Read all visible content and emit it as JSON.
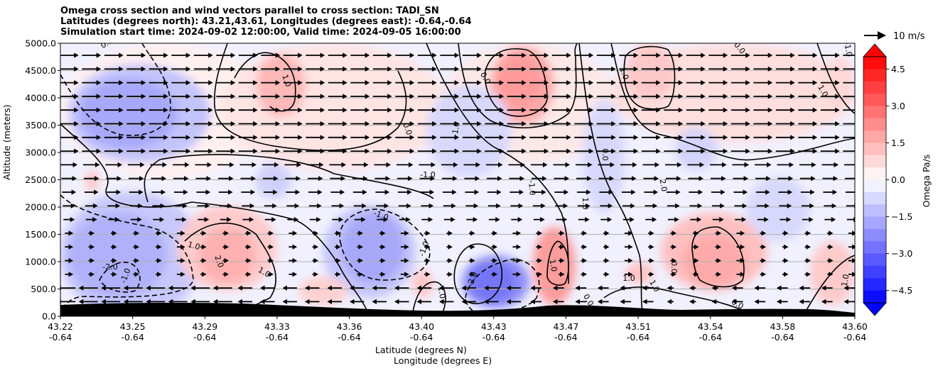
{
  "title_lines": [
    "Omega cross section and wind vectors parallel to cross section: TADI_SN",
    "Latitudes (degrees north): 43.21,43.61, Longitudes (degrees east): -0.64,-0.64",
    "Simulation start time: 2024-09-02 12:00:00, Valid time: 2024-09-05 16:00:00"
  ],
  "chart_data": {
    "type": "heatmap",
    "ylabel": "Altitude (meters)",
    "xlabel_lat": "Latitude (degrees N)",
    "xlabel_lon": "Longitude (degrees E)",
    "ylim": [
      0,
      5000
    ],
    "xlim": [
      43.22,
      43.6
    ],
    "y_ticks": [
      "0.0",
      "500.0",
      "1000.0",
      "1500.0",
      "2000.0",
      "2500.0",
      "3000.0",
      "3500.0",
      "4000.0",
      "4500.0",
      "5000.0"
    ],
    "x_ticks": [
      {
        "lat": "43.22",
        "lon": "-0.64"
      },
      {
        "lat": "43.25",
        "lon": "-0.64"
      },
      {
        "lat": "43.29",
        "lon": "-0.64"
      },
      {
        "lat": "43.33",
        "lon": "-0.64"
      },
      {
        "lat": "43.36",
        "lon": "-0.64"
      },
      {
        "lat": "43.40",
        "lon": "-0.64"
      },
      {
        "lat": "43.43",
        "lon": "-0.64"
      },
      {
        "lat": "43.47",
        "lon": "-0.64"
      },
      {
        "lat": "43.51",
        "lon": "-0.64"
      },
      {
        "lat": "43.54",
        "lon": "-0.64"
      },
      {
        "lat": "43.58",
        "lon": "-0.64"
      },
      {
        "lat": "43.60",
        "lon": "-0.64"
      }
    ],
    "grid": "horizontal",
    "colorbar": {
      "label": "Omega Pa/s",
      "range": [
        -5.0,
        5.0
      ],
      "ticks": [
        "4.5",
        "3.0",
        "1.5",
        "0.0",
        "−1.5",
        "−3.0",
        "−4.5"
      ],
      "colormap": "bwr",
      "extend": "both"
    },
    "quiver_key": {
      "label": "10 m/s"
    },
    "contour_labels": [
      "0.0",
      "1.0",
      "-1.0",
      "-2.0",
      "2.0",
      "1.0",
      "-1.0",
      "0.0",
      "1.0",
      "-1.0",
      "-2.0",
      "-1.0",
      "1.0",
      "-1.0",
      "0.0",
      "0.0",
      "1.0",
      "1.0",
      "2.0",
      "0.0",
      "-1.0",
      "0.0",
      "1.0",
      "0.0",
      "1.0",
      "1.0",
      "0.0",
      "1.0",
      "1.0",
      "-1.0"
    ],
    "terrain_color": "#000000"
  }
}
